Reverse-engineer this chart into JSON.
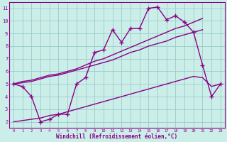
{
  "xlabel": "Windchill (Refroidissement éolien,°C)",
  "background_color": "#cceee8",
  "grid_color": "#99cccc",
  "line_color": "#880088",
  "x_values": [
    0,
    1,
    2,
    3,
    4,
    5,
    6,
    7,
    8,
    9,
    10,
    11,
    12,
    13,
    14,
    15,
    16,
    17,
    18,
    19,
    20,
    21,
    22,
    23
  ],
  "line_main": [
    5.0,
    4.8,
    4.0,
    2.0,
    2.2,
    2.6,
    2.6,
    5.0,
    5.5,
    7.5,
    7.7,
    9.3,
    8.3,
    9.4,
    9.4,
    11.0,
    11.1,
    10.1,
    10.4,
    9.9,
    9.1,
    6.5,
    4.0,
    5.0
  ],
  "line_upper1": [
    5.0,
    5.2,
    5.3,
    5.5,
    5.7,
    5.8,
    6.0,
    6.2,
    6.5,
    6.8,
    7.0,
    7.3,
    7.6,
    7.9,
    8.2,
    8.5,
    8.8,
    9.1,
    9.4,
    9.6,
    9.9,
    10.2,
    null,
    null
  ],
  "line_upper2": [
    5.0,
    5.1,
    5.2,
    5.4,
    5.6,
    5.7,
    5.9,
    6.1,
    6.3,
    6.5,
    6.7,
    6.9,
    7.2,
    7.5,
    7.7,
    8.0,
    8.2,
    8.4,
    8.7,
    8.9,
    9.1,
    9.3,
    null,
    null
  ],
  "line_lower": [
    2.0,
    2.1,
    2.2,
    2.3,
    2.5,
    2.6,
    2.8,
    3.0,
    3.2,
    3.4,
    3.6,
    3.8,
    4.0,
    4.2,
    4.4,
    4.6,
    4.8,
    5.0,
    5.2,
    5.4,
    5.6,
    5.5,
    4.8,
    5.0
  ],
  "ylim": [
    1.5,
    11.5
  ],
  "xlim": [
    -0.5,
    23.5
  ],
  "yticks": [
    2,
    3,
    4,
    5,
    6,
    7,
    8,
    9,
    10,
    11
  ],
  "xticks": [
    0,
    1,
    2,
    3,
    4,
    5,
    6,
    7,
    8,
    9,
    10,
    11,
    12,
    13,
    14,
    15,
    16,
    17,
    18,
    19,
    20,
    21,
    22,
    23
  ]
}
